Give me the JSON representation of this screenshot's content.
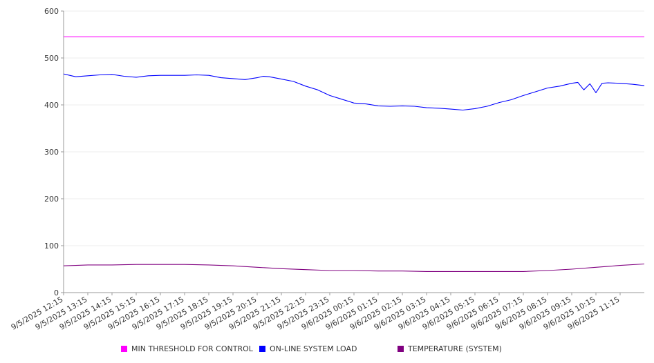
{
  "chart_data": {
    "type": "line",
    "title": "",
    "xlabel": "",
    "ylabel": "",
    "ylim": [
      0,
      600
    ],
    "yticks": [
      0,
      100,
      200,
      300,
      400,
      500,
      600
    ],
    "grid": true,
    "legend_position": "bottom",
    "x_tick_labels": [
      "9/5/2025 12:15",
      "9/5/2025 13:15",
      "9/5/2025 14:15",
      "9/5/2025 15:15",
      "9/5/2025 16:15",
      "9/5/2025 17:15",
      "9/5/2025 18:15",
      "9/5/2025 19:15",
      "9/5/2025 20:15",
      "9/5/2025 21:15",
      "9/5/2025 22:15",
      "9/5/2025 23:15",
      "9/6/2025 00:15",
      "9/6/2025 01:15",
      "9/6/2025 02:15",
      "9/6/2025 03:15",
      "9/6/2025 04:15",
      "9/6/2025 05:15",
      "9/6/2025 06:15",
      "9/6/2025 07:15",
      "9/6/2025 08:15",
      "9/6/2025 09:15",
      "9/6/2025 10:15",
      "9/6/2025 11:15"
    ],
    "series": [
      {
        "name": "MIN THRESHOLD FOR CONTROL",
        "color": "#ff00ff",
        "x": [
          "9/5/2025 12:15",
          "9/6/2025 12:15"
        ],
        "values": [
          545,
          545
        ]
      },
      {
        "name": "ON-LINE SYSTEM LOAD",
        "color": "#0000ff",
        "x": [
          "9/5/2025 12:15",
          "9/5/2025 12:30",
          "9/5/2025 12:45",
          "9/5/2025 13:15",
          "9/5/2025 13:45",
          "9/5/2025 14:15",
          "9/5/2025 14:45",
          "9/5/2025 15:15",
          "9/5/2025 15:45",
          "9/5/2025 16:15",
          "9/5/2025 16:45",
          "9/5/2025 17:15",
          "9/5/2025 17:45",
          "9/5/2025 18:15",
          "9/5/2025 18:45",
          "9/5/2025 19:15",
          "9/5/2025 19:45",
          "9/5/2025 20:15",
          "9/5/2025 20:30",
          "9/5/2025 20:45",
          "9/5/2025 21:15",
          "9/5/2025 21:45",
          "9/5/2025 22:15",
          "9/5/2025 22:45",
          "9/5/2025 23:15",
          "9/5/2025 23:45",
          "9/6/2025 00:15",
          "9/6/2025 00:45",
          "9/6/2025 01:15",
          "9/6/2025 01:45",
          "9/6/2025 02:15",
          "9/6/2025 02:45",
          "9/6/2025 03:15",
          "9/6/2025 03:45",
          "9/6/2025 04:15",
          "9/6/2025 04:45",
          "9/6/2025 05:15",
          "9/6/2025 05:45",
          "9/6/2025 06:15",
          "9/6/2025 06:45",
          "9/6/2025 07:15",
          "9/6/2025 07:45",
          "9/6/2025 08:15",
          "9/6/2025 08:45",
          "9/6/2025 09:15",
          "9/6/2025 09:30",
          "9/6/2025 09:45",
          "9/6/2025 10:00",
          "9/6/2025 10:15",
          "9/6/2025 10:30",
          "9/6/2025 10:45",
          "9/6/2025 11:15",
          "9/6/2025 11:45",
          "9/6/2025 12:15"
        ],
        "values": [
          466,
          463,
          460,
          462,
          464,
          465,
          461,
          459,
          462,
          463,
          463,
          463,
          464,
          463,
          458,
          456,
          454,
          458,
          461,
          460,
          455,
          450,
          440,
          432,
          420,
          412,
          404,
          402,
          398,
          397,
          398,
          397,
          394,
          393,
          391,
          389,
          392,
          397,
          405,
          411,
          420,
          428,
          436,
          440,
          446,
          448,
          432,
          445,
          426,
          446,
          447,
          446,
          444,
          441
        ]
      },
      {
        "name": "TEMPERATURE (SYSTEM)",
        "color": "#800080",
        "x": [
          "9/5/2025 12:15",
          "9/5/2025 13:15",
          "9/5/2025 14:15",
          "9/5/2025 15:15",
          "9/5/2025 16:15",
          "9/5/2025 17:15",
          "9/5/2025 18:15",
          "9/5/2025 19:15",
          "9/5/2025 20:15",
          "9/5/2025 21:15",
          "9/5/2025 22:15",
          "9/5/2025 23:15",
          "9/6/2025 00:15",
          "9/6/2025 01:15",
          "9/6/2025 02:15",
          "9/6/2025 03:15",
          "9/6/2025 04:15",
          "9/6/2025 05:15",
          "9/6/2025 06:15",
          "9/6/2025 07:15",
          "9/6/2025 08:15",
          "9/6/2025 09:15",
          "9/6/2025 10:15",
          "9/6/2025 11:15",
          "9/6/2025 12:15"
        ],
        "values": [
          57,
          59,
          59,
          60,
          60,
          60,
          59,
          57,
          54,
          51,
          49,
          47,
          47,
          46,
          46,
          45,
          45,
          45,
          45,
          45,
          47,
          50,
          54,
          58,
          61
        ]
      }
    ]
  }
}
